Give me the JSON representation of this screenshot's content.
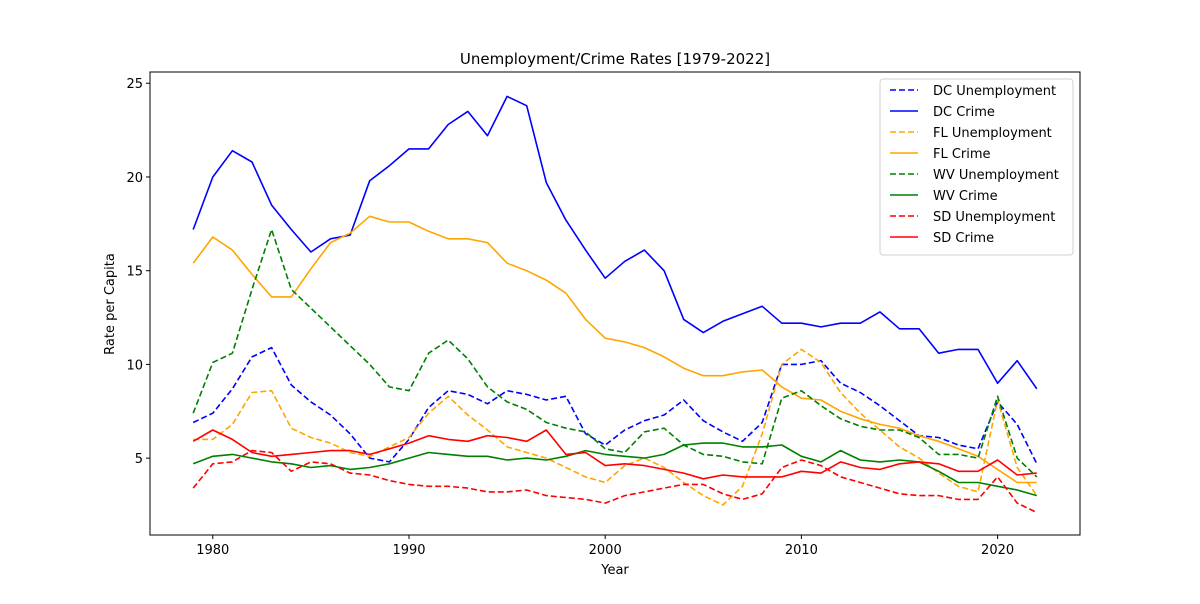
{
  "chart_data": {
    "type": "line",
    "title": "Unemployment/Crime Rates [1979-2022]",
    "xlabel": "Year",
    "ylabel": "Rate per Capita",
    "xlim": [
      1976.8,
      2024.2
    ],
    "ylim": [
      0.9,
      25.6
    ],
    "xticks": [
      1980,
      1990,
      2000,
      2010,
      2020
    ],
    "yticks": [
      5,
      10,
      15,
      20,
      25
    ],
    "grid": false,
    "legend_position": "top-right",
    "x": [
      1979,
      1980,
      1981,
      1982,
      1983,
      1984,
      1985,
      1986,
      1987,
      1988,
      1989,
      1990,
      1991,
      1992,
      1993,
      1994,
      1995,
      1996,
      1997,
      1998,
      1999,
      2000,
      2001,
      2002,
      2003,
      2004,
      2005,
      2006,
      2007,
      2008,
      2009,
      2010,
      2011,
      2012,
      2013,
      2014,
      2015,
      2016,
      2017,
      2018,
      2019,
      2020,
      2021,
      2022
    ],
    "series": [
      {
        "name": "DC Unemployment",
        "color": "#0000ff",
        "style": "dashed",
        "values": [
          6.9,
          7.4,
          8.7,
          10.4,
          10.9,
          8.9,
          8.0,
          7.3,
          6.3,
          5.0,
          4.8,
          6.0,
          7.7,
          8.6,
          8.4,
          7.9,
          8.6,
          8.4,
          8.1,
          8.3,
          6.3,
          5.7,
          6.5,
          7.0,
          7.3,
          8.1,
          7.0,
          6.4,
          5.9,
          6.9,
          10.0,
          10.0,
          10.2,
          9.0,
          8.5,
          7.8,
          7.0,
          6.2,
          6.1,
          5.7,
          5.5,
          8.0,
          6.8,
          4.7
        ]
      },
      {
        "name": "DC Crime",
        "color": "#0000ff",
        "style": "solid",
        "values": [
          17.2,
          20.0,
          21.4,
          20.8,
          18.5,
          17.2,
          16.0,
          16.7,
          16.9,
          19.8,
          20.6,
          21.5,
          21.5,
          22.8,
          23.5,
          22.2,
          24.3,
          23.8,
          19.7,
          17.7,
          16.1,
          14.6,
          15.5,
          16.1,
          15.0,
          12.4,
          11.7,
          12.3,
          12.7,
          13.1,
          12.2,
          12.2,
          12.0,
          12.2,
          12.2,
          12.8,
          11.9,
          11.9,
          10.6,
          10.8,
          10.8,
          9.0,
          10.2,
          8.7
        ]
      },
      {
        "name": "FL Unemployment",
        "color": "#ffa500",
        "style": "dashed",
        "values": [
          6.0,
          6.0,
          6.8,
          8.5,
          8.6,
          6.6,
          6.1,
          5.8,
          5.3,
          5.1,
          5.6,
          6.1,
          7.4,
          8.3,
          7.3,
          6.5,
          5.6,
          5.3,
          5.0,
          4.5,
          4.0,
          3.7,
          4.6,
          5.0,
          4.5,
          3.7,
          3.0,
          2.5,
          3.5,
          6.3,
          10.0,
          10.8,
          10.1,
          8.5,
          7.4,
          6.5,
          5.6,
          5.0,
          4.2,
          3.5,
          3.2,
          8.1,
          4.5,
          3.0
        ]
      },
      {
        "name": "FL Crime",
        "color": "#ffa500",
        "style": "solid",
        "values": [
          15.4,
          16.8,
          16.1,
          14.8,
          13.6,
          13.6,
          15.1,
          16.5,
          17.0,
          17.9,
          17.6,
          17.6,
          17.1,
          16.7,
          16.7,
          16.5,
          15.4,
          15.0,
          14.5,
          13.8,
          12.4,
          11.4,
          11.2,
          10.9,
          10.4,
          9.8,
          9.4,
          9.4,
          9.6,
          9.7,
          8.8,
          8.2,
          8.1,
          7.5,
          7.1,
          6.8,
          6.6,
          6.2,
          5.9,
          5.5,
          5.1,
          4.4,
          3.7,
          3.7
        ]
      },
      {
        "name": "WV Unemployment",
        "color": "#008000",
        "style": "dashed",
        "values": [
          7.4,
          10.1,
          10.6,
          14.0,
          17.2,
          14.0,
          13.0,
          12.0,
          11.0,
          10.0,
          8.8,
          8.6,
          10.6,
          11.3,
          10.3,
          8.8,
          8.0,
          7.6,
          6.9,
          6.6,
          6.4,
          5.5,
          5.3,
          6.4,
          6.6,
          5.7,
          5.2,
          5.1,
          4.8,
          4.7,
          8.2,
          8.6,
          7.8,
          7.1,
          6.7,
          6.5,
          6.5,
          6.1,
          5.2,
          5.2,
          5.0,
          8.3,
          5.0,
          4.0
        ]
      },
      {
        "name": "WV Crime",
        "color": "#008000",
        "style": "solid",
        "values": [
          4.7,
          5.1,
          5.2,
          5.0,
          4.8,
          4.7,
          4.5,
          4.6,
          4.4,
          4.5,
          4.7,
          5.0,
          5.3,
          5.2,
          5.1,
          5.1,
          4.9,
          5.0,
          4.9,
          5.1,
          5.4,
          5.2,
          5.1,
          5.0,
          5.2,
          5.7,
          5.8,
          5.8,
          5.6,
          5.6,
          5.7,
          5.1,
          4.8,
          5.4,
          4.9,
          4.8,
          4.9,
          4.8,
          4.3,
          3.7,
          3.7,
          3.5,
          3.3,
          3.0
        ]
      },
      {
        "name": "SD Unemployment",
        "color": "#ff0000",
        "style": "dashed",
        "values": [
          3.4,
          4.7,
          4.8,
          5.4,
          5.3,
          4.3,
          4.8,
          4.7,
          4.2,
          4.1,
          3.8,
          3.6,
          3.5,
          3.5,
          3.4,
          3.2,
          3.2,
          3.3,
          3.0,
          2.9,
          2.8,
          2.6,
          3.0,
          3.2,
          3.4,
          3.6,
          3.6,
          3.1,
          2.8,
          3.1,
          4.5,
          4.9,
          4.6,
          4.0,
          3.7,
          3.4,
          3.1,
          3.0,
          3.0,
          2.8,
          2.8,
          4.0,
          2.6,
          2.1
        ]
      },
      {
        "name": "SD Crime",
        "color": "#ff0000",
        "style": "solid",
        "values": [
          5.9,
          6.5,
          6.0,
          5.3,
          5.1,
          5.2,
          5.3,
          5.4,
          5.4,
          5.2,
          5.5,
          5.8,
          6.2,
          6.0,
          5.9,
          6.2,
          6.1,
          5.9,
          6.5,
          5.2,
          5.3,
          4.6,
          4.7,
          4.6,
          4.4,
          4.2,
          3.9,
          4.1,
          4.0,
          4.0,
          4.0,
          4.3,
          4.2,
          4.8,
          4.5,
          4.4,
          4.7,
          4.8,
          4.7,
          4.3,
          4.3,
          4.9,
          4.1,
          4.2
        ]
      }
    ]
  }
}
